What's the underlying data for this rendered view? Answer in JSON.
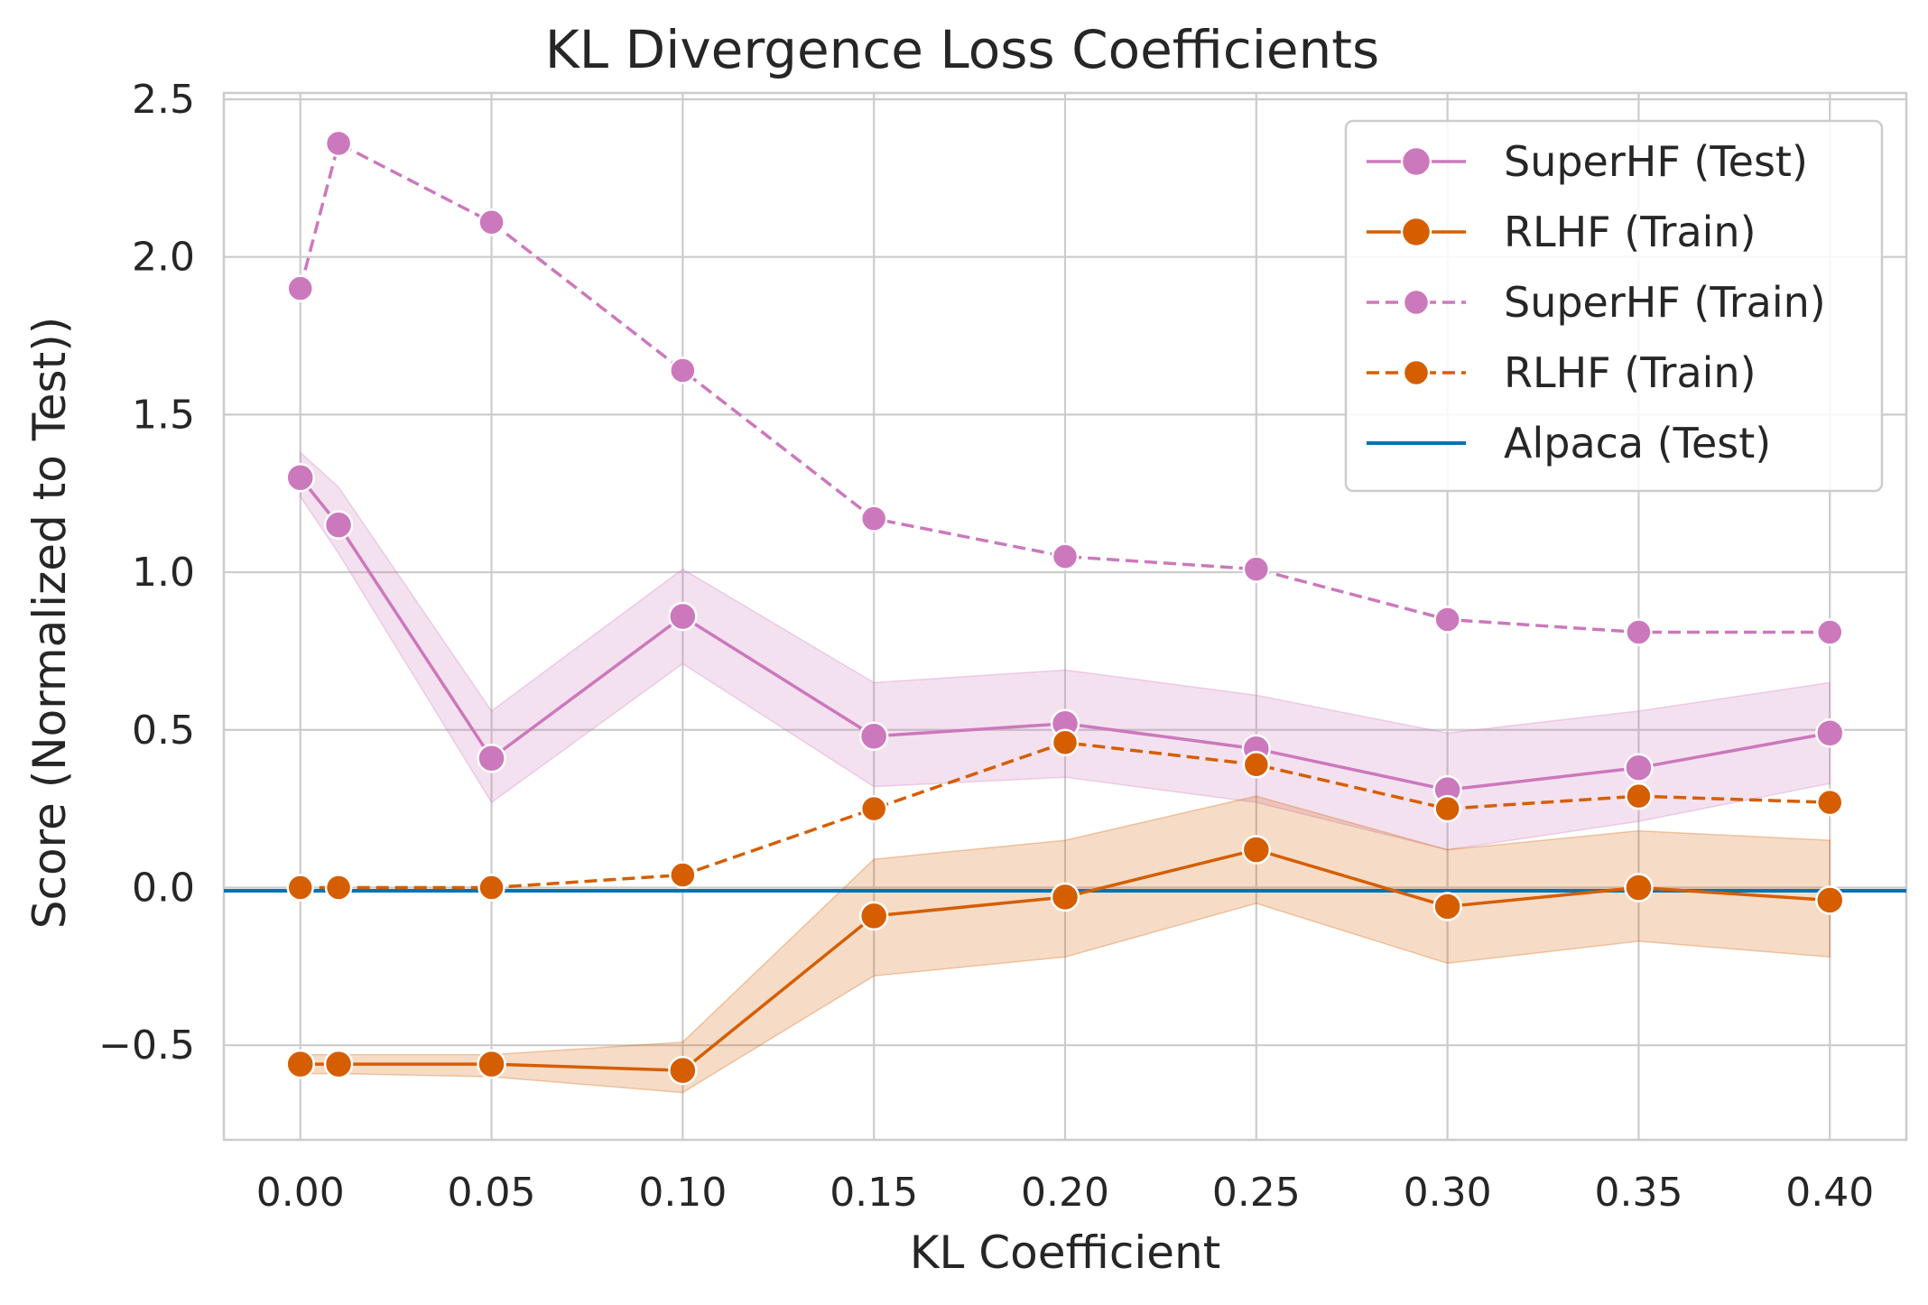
{
  "chart_data": {
    "type": "line",
    "title": "KL Divergence Loss Coefficients",
    "xlabel": "KL Coefficient",
    "ylabel": "Score (Normalized to Test))",
    "xlim": [
      -0.02,
      0.42
    ],
    "ylim": [
      -0.8,
      2.52
    ],
    "grid": true,
    "legend_position": "top-right",
    "x_ticks": [
      0.0,
      0.05,
      0.1,
      0.15,
      0.2,
      0.25,
      0.3,
      0.35,
      0.4
    ],
    "x_tick_labels": [
      "0.00",
      "0.05",
      "0.10",
      "0.15",
      "0.20",
      "0.25",
      "0.30",
      "0.35",
      "0.40"
    ],
    "y_ticks": [
      -0.5,
      0.0,
      0.5,
      1.0,
      1.5,
      2.0,
      2.5
    ],
    "y_tick_labels": [
      "−0.5",
      "0.0",
      "0.5",
      "1.0",
      "1.5",
      "2.0",
      "2.5"
    ],
    "series": [
      {
        "name": "SuperHF (Test)",
        "color": "#cc78bc",
        "style": "solid",
        "marker_size": "large",
        "x": [
          0.0,
          0.01,
          0.05,
          0.1,
          0.15,
          0.2,
          0.25,
          0.3,
          0.35,
          0.4
        ],
        "y": [
          1.3,
          1.15,
          0.41,
          0.86,
          0.48,
          0.52,
          0.44,
          0.31,
          0.38,
          0.49
        ],
        "ci_lower": [
          1.24,
          1.06,
          0.27,
          0.71,
          0.32,
          0.35,
          0.27,
          0.12,
          0.21,
          0.33
        ],
        "ci_upper": [
          1.38,
          1.27,
          0.56,
          1.01,
          0.65,
          0.69,
          0.61,
          0.49,
          0.56,
          0.65
        ]
      },
      {
        "name": "RLHF (Train)",
        "color": "#d55e00",
        "style": "solid",
        "marker_size": "large",
        "x": [
          0.0,
          0.01,
          0.05,
          0.1,
          0.15,
          0.2,
          0.25,
          0.3,
          0.35,
          0.4
        ],
        "y": [
          -0.56,
          -0.56,
          -0.56,
          -0.58,
          -0.09,
          -0.03,
          0.12,
          -0.06,
          0.0,
          -0.04
        ],
        "ci_lower": [
          -0.59,
          -0.59,
          -0.6,
          -0.65,
          -0.28,
          -0.22,
          -0.05,
          -0.24,
          -0.17,
          -0.22
        ],
        "ci_upper": [
          -0.53,
          -0.53,
          -0.53,
          -0.49,
          0.09,
          0.15,
          0.29,
          0.12,
          0.18,
          0.15
        ]
      },
      {
        "name": "SuperHF (Train)",
        "color": "#cc78bc",
        "style": "dashed",
        "marker_size": "small",
        "x": [
          0.0,
          0.01,
          0.05,
          0.1,
          0.15,
          0.2,
          0.25,
          0.3,
          0.35,
          0.4
        ],
        "y": [
          1.9,
          2.36,
          2.11,
          1.64,
          1.17,
          1.05,
          1.01,
          0.85,
          0.81,
          0.81
        ]
      },
      {
        "name": "RLHF (Train)",
        "color": "#d55e00",
        "style": "dashed",
        "marker_size": "small",
        "x": [
          0.0,
          0.01,
          0.05,
          0.1,
          0.15,
          0.2,
          0.25,
          0.3,
          0.35,
          0.4
        ],
        "y": [
          0.0,
          0.0,
          0.0,
          0.04,
          0.25,
          0.46,
          0.39,
          0.25,
          0.29,
          0.27
        ]
      },
      {
        "name": "Alpaca (Test)",
        "color": "#0173b2",
        "style": "hline",
        "y": -0.01
      }
    ]
  }
}
